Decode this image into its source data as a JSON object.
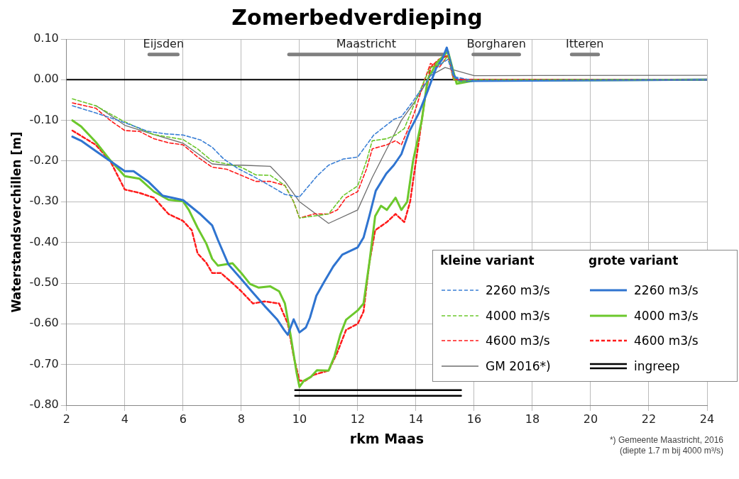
{
  "chart_data": {
    "type": "line",
    "title": "Zomerbedverdieping",
    "xlabel": "rkm Maas",
    "ylabel": "Waterstandsverchillen [m]",
    "xlim": [
      2,
      24
    ],
    "xticks": [
      2,
      4,
      6,
      8,
      10,
      12,
      14,
      16,
      18,
      20,
      22,
      24
    ],
    "ylim": [
      -0.8,
      0.1
    ],
    "yticks": [
      {
        "value": 0.1,
        "label": "0.10"
      },
      {
        "value": 0,
        "label": "0.00"
      },
      {
        "value": -0.1,
        "label": "-0.10"
      },
      {
        "value": -0.2,
        "label": "-0.20"
      },
      {
        "value": -0.3,
        "label": "-0.30"
      },
      {
        "value": -0.4,
        "label": "-0.40"
      },
      {
        "value": -0.5,
        "label": "-0.50"
      },
      {
        "value": -0.6,
        "label": "-0.60"
      },
      {
        "value": -0.7,
        "label": "-0.70"
      },
      {
        "value": -0.8,
        "label": "-0.80"
      }
    ],
    "grid": true,
    "legend": "bottom right",
    "marker": "none",
    "ref_lines": [
      {
        "axis": "y",
        "value": 0,
        "color": "#000000"
      }
    ],
    "annotations": [
      "kleine variant",
      "grote variant",
      "*) Gemeente Maastricht, 2016",
      "(diepte 1.7 m bij 4000 m³/s)",
      {
        "text": "Eijsden",
        "x": 5.33,
        "y": 0.062
      },
      {
        "text": "Maastricht",
        "x": 12.29,
        "y": 0.062
      },
      {
        "text": "Borgharen",
        "x": 16.76,
        "y": 0.062
      },
      {
        "text": "Itteren",
        "x": 19.8,
        "y": 0.062
      }
    ],
    "series": [
      {
        "name": "2260 m3/s",
        "color": "#3a7fd5",
        "line_style": "dashed",
        "x": [
          2.2,
          3.02,
          3.9,
          4.8,
          5.4,
          6.0,
          6.6,
          7.0,
          7.4,
          7.9,
          8.4,
          9.0,
          9.5,
          10.0,
          10.6,
          11.0,
          11.5,
          12.0,
          12.55,
          13.25,
          13.5,
          13.85,
          14.2,
          14.5,
          14.8,
          15.1,
          15.3,
          16,
          24
        ],
        "values": [
          -0.064,
          -0.082,
          -0.103,
          -0.127,
          -0.133,
          -0.136,
          -0.148,
          -0.166,
          -0.195,
          -0.219,
          -0.237,
          -0.261,
          -0.282,
          -0.288,
          -0.237,
          -0.21,
          -0.195,
          -0.19,
          -0.136,
          -0.097,
          -0.091,
          -0.058,
          -0.022,
          0.01,
          0.036,
          0.05,
          0.007,
          -0.002,
          0
        ]
      },
      {
        "name": "4000 m3/s",
        "color": "#6cc82c",
        "line_style": "dashed",
        "x": [
          2.2,
          3.0,
          3.9,
          4.5,
          5.0,
          6.0,
          6.5,
          7.0,
          7.5,
          8.0,
          8.5,
          9.0,
          9.5,
          9.8,
          10.0,
          10.5,
          11.0,
          11.5,
          12.0,
          12.3,
          12.5,
          13.0,
          13.3,
          13.6,
          14.0,
          14.3,
          14.5,
          14.9,
          15.1,
          15.3,
          15.5,
          16,
          24
        ],
        "values": [
          -0.047,
          -0.064,
          -0.1,
          -0.12,
          -0.135,
          -0.147,
          -0.17,
          -0.2,
          -0.207,
          -0.215,
          -0.234,
          -0.235,
          -0.26,
          -0.3,
          -0.34,
          -0.335,
          -0.33,
          -0.285,
          -0.261,
          -0.2,
          -0.15,
          -0.145,
          -0.136,
          -0.12,
          -0.05,
          0.0,
          0.03,
          0.04,
          0.06,
          0.0,
          -0.005,
          0,
          0
        ]
      },
      {
        "name": "4600 m3/s",
        "color": "#ff1a1a",
        "line_style": "dashed",
        "x": [
          2.2,
          3.0,
          3.5,
          4.0,
          4.5,
          5.0,
          5.5,
          6.0,
          6.5,
          7.0,
          7.5,
          8.0,
          8.5,
          9.0,
          9.5,
          9.8,
          10.0,
          10.5,
          11.0,
          11.3,
          11.6,
          12.0,
          12.3,
          12.5,
          13.0,
          13.3,
          13.5,
          13.8,
          14.0,
          14.3,
          14.5,
          14.8,
          15.1,
          15.3,
          16,
          24
        ],
        "values": [
          -0.057,
          -0.07,
          -0.1,
          -0.125,
          -0.127,
          -0.145,
          -0.155,
          -0.16,
          -0.19,
          -0.215,
          -0.22,
          -0.235,
          -0.25,
          -0.25,
          -0.26,
          -0.3,
          -0.34,
          -0.33,
          -0.33,
          -0.32,
          -0.29,
          -0.275,
          -0.22,
          -0.17,
          -0.16,
          -0.15,
          -0.16,
          -0.11,
          -0.07,
          0.0,
          0.04,
          0.03,
          0.06,
          0.0,
          0.0,
          0
        ]
      },
      {
        "name": "2260 m3/s",
        "color": "#2f74d0",
        "line_style": "solid",
        "x": [
          2.2,
          2.5,
          3.0,
          3.5,
          4.0,
          4.3,
          4.8,
          5.3,
          6.0,
          6.57,
          7.0,
          7.2,
          7.56,
          8.0,
          8.36,
          8.8,
          9.24,
          9.47,
          9.6,
          9.8,
          10.0,
          10.22,
          10.36,
          10.58,
          10.84,
          11.16,
          11.47,
          12.0,
          12.2,
          12.4,
          12.62,
          12.98,
          13.24,
          13.5,
          13.78,
          14.1,
          14.4,
          14.7,
          14.9,
          15.06,
          15.3,
          15.5,
          16,
          24
        ],
        "values": [
          -0.14,
          -0.15,
          -0.175,
          -0.2,
          -0.225,
          -0.225,
          -0.25,
          -0.285,
          -0.296,
          -0.329,
          -0.358,
          -0.394,
          -0.454,
          -0.49,
          -0.52,
          -0.556,
          -0.59,
          -0.615,
          -0.627,
          -0.589,
          -0.621,
          -0.609,
          -0.585,
          -0.531,
          -0.498,
          -0.459,
          -0.43,
          -0.412,
          -0.388,
          -0.335,
          -0.273,
          -0.231,
          -0.21,
          -0.183,
          -0.126,
          -0.082,
          -0.028,
          0.03,
          0.05,
          0.079,
          0.01,
          -0.003,
          -0.003,
          0
        ]
      },
      {
        "name": "4000 m3/s",
        "color": "#6cc82c",
        "line_style": "solid",
        "x": [
          2.2,
          2.5,
          3.0,
          3.5,
          4.0,
          4.5,
          5.0,
          5.5,
          6.0,
          6.2,
          6.5,
          6.8,
          7.0,
          7.2,
          7.7,
          8.0,
          8.3,
          8.6,
          9.0,
          9.3,
          9.5,
          9.7,
          9.9,
          10.0,
          10.15,
          10.4,
          10.6,
          11.0,
          11.2,
          11.4,
          11.6,
          12.0,
          12.2,
          12.4,
          12.6,
          12.8,
          13.0,
          13.3,
          13.5,
          13.7,
          13.9,
          14.2,
          14.4,
          14.7,
          15.1,
          15.4,
          16,
          24
        ],
        "values": [
          -0.1,
          -0.115,
          -0.153,
          -0.198,
          -0.237,
          -0.243,
          -0.275,
          -0.295,
          -0.299,
          -0.32,
          -0.364,
          -0.403,
          -0.44,
          -0.457,
          -0.451,
          -0.475,
          -0.502,
          -0.511,
          -0.508,
          -0.52,
          -0.55,
          -0.63,
          -0.72,
          -0.755,
          -0.74,
          -0.73,
          -0.714,
          -0.715,
          -0.68,
          -0.627,
          -0.59,
          -0.567,
          -0.55,
          -0.45,
          -0.335,
          -0.31,
          -0.32,
          -0.29,
          -0.32,
          -0.3,
          -0.2,
          -0.1,
          0.0,
          0.04,
          0.07,
          -0.01,
          -0.002,
          0
        ]
      },
      {
        "name": "4600 m3/s",
        "color": "#ff1a1a",
        "line_style": "dashed",
        "x": [
          2.2,
          3.0,
          3.5,
          4.0,
          4.5,
          5.0,
          5.5,
          6.0,
          6.3,
          6.5,
          6.8,
          7.0,
          7.3,
          7.7,
          8.0,
          8.4,
          8.8,
          9.3,
          9.6,
          9.8,
          10.0,
          10.2,
          10.5,
          11.0,
          11.3,
          11.6,
          12.0,
          12.2,
          12.4,
          12.6,
          13.0,
          13.3,
          13.6,
          13.8,
          14.0,
          14.3,
          14.5,
          14.8,
          15.1,
          15.3,
          16,
          24
        ],
        "values": [
          -0.125,
          -0.16,
          -0.2,
          -0.27,
          -0.278,
          -0.29,
          -0.33,
          -0.347,
          -0.37,
          -0.427,
          -0.45,
          -0.475,
          -0.475,
          -0.5,
          -0.52,
          -0.55,
          -0.545,
          -0.55,
          -0.6,
          -0.68,
          -0.74,
          -0.74,
          -0.725,
          -0.715,
          -0.67,
          -0.615,
          -0.6,
          -0.57,
          -0.45,
          -0.37,
          -0.35,
          -0.33,
          -0.35,
          -0.3,
          -0.2,
          -0.05,
          0.03,
          0.05,
          0.06,
          0.0,
          0.0,
          0
        ]
      },
      {
        "name": "GM 2016*)",
        "color": "#6e6e6e",
        "line_style": "solid",
        "x": [
          3.0,
          4.0,
          5.0,
          6.0,
          7.0,
          7.5,
          8.0,
          9.0,
          9.5,
          10.0,
          11.0,
          12.0,
          12.5,
          13.0,
          13.5,
          14.0,
          14.5,
          15.0,
          16.0,
          24
        ],
        "values": [
          -0.063,
          -0.112,
          -0.135,
          -0.156,
          -0.207,
          -0.21,
          -0.21,
          -0.213,
          -0.25,
          -0.3,
          -0.353,
          -0.32,
          -0.24,
          -0.17,
          -0.1,
          -0.05,
          0.01,
          0.03,
          0.01,
          0.011
        ]
      },
      {
        "name": "ingreep",
        "color": "#000000",
        "line_style": "solid",
        "x": [
          9.85,
          15.55
        ],
        "values": [
          -0.763,
          -0.763
        ]
      },
      {
        "color": "#000000",
        "line_style": "solid",
        "x": [
          9.85,
          15.55
        ],
        "values": [
          -0.777,
          -0.777
        ]
      },
      {
        "color": "#7f7f7f",
        "line_style": "solid",
        "x": [
          4.84,
          5.82
        ],
        "values": [
          0.062,
          0.062
        ]
      },
      {
        "color": "#7f7f7f",
        "line_style": "solid",
        "x": [
          9.64,
          14.94
        ],
        "values": [
          0.062,
          0.062
        ]
      },
      {
        "color": "#7f7f7f",
        "line_style": "solid",
        "x": [
          15.97,
          17.55
        ],
        "values": [
          0.062,
          0.062
        ]
      },
      {
        "color": "#7f7f7f",
        "line_style": "solid",
        "x": [
          19.35,
          20.26
        ],
        "values": [
          0.062,
          0.062
        ]
      }
    ]
  }
}
